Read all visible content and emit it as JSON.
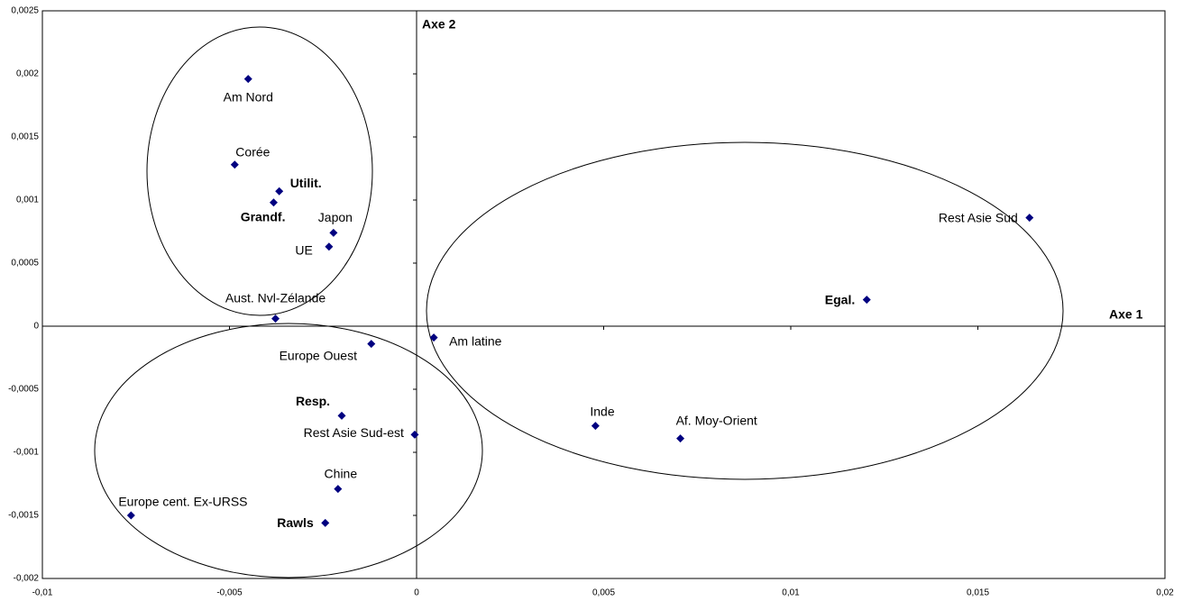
{
  "chart_data": {
    "type": "scatter",
    "x_axis_label": "Axe 1",
    "y_axis_label": "Axe 2",
    "color": "#000080",
    "xlim": [
      -0.01,
      0.02
    ],
    "ylim": [
      -0.002,
      0.0025
    ],
    "xticks": [
      {
        "value": -0.01,
        "label": "-0,01"
      },
      {
        "value": -0.005,
        "label": "-0,005"
      },
      0,
      {
        "value": 0.005,
        "label": "0,005"
      },
      {
        "value": 0.01,
        "label": "0,01"
      },
      {
        "value": 0.015,
        "label": "0,015"
      },
      {
        "value": 0.02,
        "label": "0,02"
      }
    ],
    "yticks": [
      {
        "value": -0.002,
        "label": "-0,002"
      },
      {
        "value": -0.0015,
        "label": "-0,0015"
      },
      {
        "value": -0.001,
        "label": "-0,001"
      },
      {
        "value": -0.0005,
        "label": "-0,0005"
      },
      0,
      {
        "value": 0.0005,
        "label": "0,0005"
      },
      {
        "value": 0.001,
        "label": "0,001"
      },
      {
        "value": 0.0015,
        "label": "0,0015"
      },
      {
        "value": 0.002,
        "label": "0,002"
      },
      {
        "value": 0.0025,
        "label": "0,0025"
      }
    ],
    "points": [
      {
        "label": "Am Nord",
        "x": -0.0045,
        "y": 0.00196,
        "bold": false
      },
      {
        "label": "Corée",
        "x": -0.00486,
        "y": 0.00128,
        "bold": false
      },
      {
        "label": "Utilit.",
        "x": -0.00367,
        "y": 0.00107,
        "bold": true
      },
      {
        "label": "Grandf.",
        "x": -0.00382,
        "y": 0.00098,
        "bold": true
      },
      {
        "label": "Japon",
        "x": -0.00222,
        "y": 0.00074,
        "bold": false
      },
      {
        "label": "UE",
        "x": -0.00234,
        "y": 0.00063,
        "bold": false
      },
      {
        "label": "Aust. Nvl-Zélande",
        "x": -0.00377,
        "y": 6e-05,
        "bold": false
      },
      {
        "label": "Europe Ouest",
        "x": -0.00121,
        "y": -0.00014,
        "bold": false
      },
      {
        "label": "Resp.",
        "x": -0.002,
        "y": -0.00071,
        "bold": true
      },
      {
        "label": "Rest Asie Sud-est",
        "x": -5e-05,
        "y": -0.00086,
        "bold": false
      },
      {
        "label": "Chine",
        "x": -0.0021,
        "y": -0.00129,
        "bold": false
      },
      {
        "label": "Europe cent. Ex-URSS",
        "x": -0.00763,
        "y": -0.0015,
        "bold": false
      },
      {
        "label": "Rawls",
        "x": -0.00244,
        "y": -0.00156,
        "bold": true
      },
      {
        "label": "Am latine",
        "x": 0.00046,
        "y": -9e-05,
        "bold": false
      },
      {
        "label": "Inde",
        "x": 0.00478,
        "y": -0.00079,
        "bold": false
      },
      {
        "label": "Af. Moy-Orient",
        "x": 0.00705,
        "y": -0.00089,
        "bold": false
      },
      {
        "label": "Egal.",
        "x": 0.01203,
        "y": 0.00021,
        "bold": true
      },
      {
        "label": "Rest Asie Sud",
        "x": 0.01638,
        "y": 0.00086,
        "bold": false
      }
    ]
  }
}
